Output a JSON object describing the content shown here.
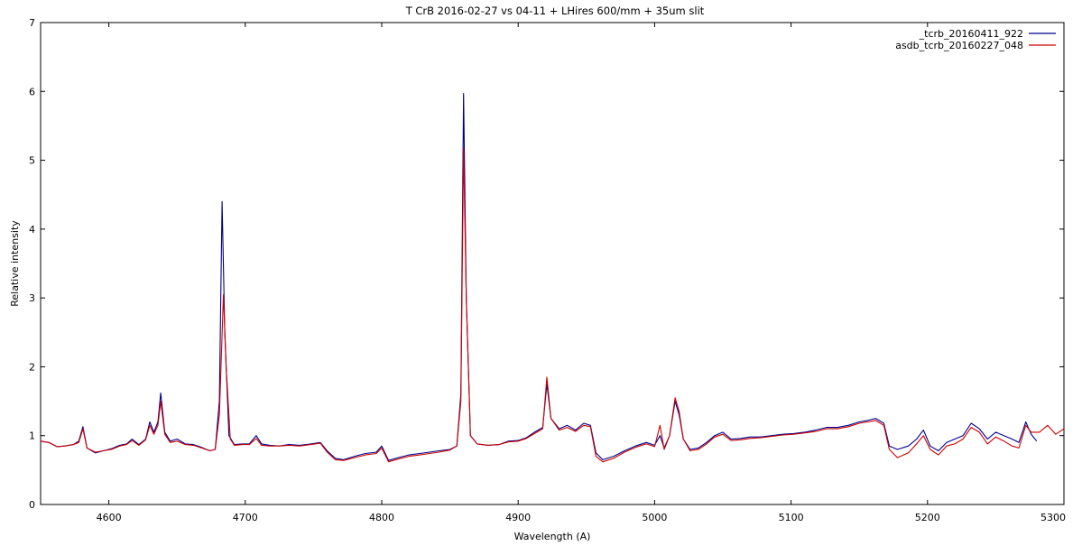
{
  "chart_data": {
    "type": "line",
    "title": "T CrB 2016-02-27 vs 04-11 + LHires 600/mm + 35um slit",
    "xlabel": "Wavelength (A)",
    "ylabel": "Relative intensity",
    "xlim": [
      4550,
      5300
    ],
    "ylim": [
      0,
      7
    ],
    "xticks": [
      "4600",
      "4700",
      "4800",
      "4900",
      "5000",
      "5100",
      "5200",
      "5300"
    ],
    "yticks": [
      "0",
      "1",
      "2",
      "3",
      "4",
      "5",
      "6",
      "7"
    ],
    "grid": false,
    "legend": "top-right",
    "series": [
      {
        "name": "_tcrb_20160411_922",
        "color": "#00008b",
        "points": [
          [
            4550,
            0.92
          ],
          [
            4556,
            0.9
          ],
          [
            4562,
            0.84
          ],
          [
            4568,
            0.85
          ],
          [
            4574,
            0.87
          ],
          [
            4578,
            0.92
          ],
          [
            4581,
            1.13
          ],
          [
            4584,
            0.82
          ],
          [
            4590,
            0.75
          ],
          [
            4596,
            0.78
          ],
          [
            4602,
            0.81
          ],
          [
            4608,
            0.86
          ],
          [
            4613,
            0.88
          ],
          [
            4617,
            0.95
          ],
          [
            4622,
            0.87
          ],
          [
            4627,
            0.95
          ],
          [
            4630,
            1.2
          ],
          [
            4633,
            1.05
          ],
          [
            4636,
            1.2
          ],
          [
            4638,
            1.62
          ],
          [
            4641,
            1.05
          ],
          [
            4645,
            0.92
          ],
          [
            4650,
            0.95
          ],
          [
            4656,
            0.88
          ],
          [
            4662,
            0.87
          ],
          [
            4668,
            0.83
          ],
          [
            4674,
            0.78
          ],
          [
            4678,
            0.8
          ],
          [
            4681,
            1.5
          ],
          [
            4683,
            4.4
          ],
          [
            4685,
            2.5
          ],
          [
            4688,
            1.0
          ],
          [
            4692,
            0.87
          ],
          [
            4698,
            0.88
          ],
          [
            4703,
            0.88
          ],
          [
            4708,
            1.0
          ],
          [
            4712,
            0.88
          ],
          [
            4718,
            0.86
          ],
          [
            4725,
            0.85
          ],
          [
            4732,
            0.87
          ],
          [
            4740,
            0.86
          ],
          [
            4748,
            0.88
          ],
          [
            4755,
            0.9
          ],
          [
            4760,
            0.78
          ],
          [
            4766,
            0.67
          ],
          [
            4772,
            0.65
          ],
          [
            4780,
            0.7
          ],
          [
            4788,
            0.74
          ],
          [
            4796,
            0.76
          ],
          [
            4800,
            0.85
          ],
          [
            4805,
            0.64
          ],
          [
            4812,
            0.68
          ],
          [
            4820,
            0.72
          ],
          [
            4828,
            0.74
          ],
          [
            4835,
            0.76
          ],
          [
            4842,
            0.78
          ],
          [
            4850,
            0.8
          ],
          [
            4855,
            0.85
          ],
          [
            4858,
            1.6
          ],
          [
            4860,
            5.97
          ],
          [
            4862,
            3.0
          ],
          [
            4865,
            1.0
          ],
          [
            4870,
            0.88
          ],
          [
            4878,
            0.86
          ],
          [
            4886,
            0.87
          ],
          [
            4893,
            0.92
          ],
          [
            4900,
            0.93
          ],
          [
            4906,
            0.97
          ],
          [
            4912,
            1.05
          ],
          [
            4918,
            1.12
          ],
          [
            4921,
            1.75
          ],
          [
            4924,
            1.25
          ],
          [
            4930,
            1.1
          ],
          [
            4936,
            1.15
          ],
          [
            4942,
            1.08
          ],
          [
            4948,
            1.18
          ],
          [
            4953,
            1.15
          ],
          [
            4957,
            0.75
          ],
          [
            4962,
            0.65
          ],
          [
            4970,
            0.7
          ],
          [
            4978,
            0.78
          ],
          [
            4986,
            0.85
          ],
          [
            4994,
            0.9
          ],
          [
            5000,
            0.86
          ],
          [
            5004,
            1.0
          ],
          [
            5007,
            0.82
          ],
          [
            5011,
            1.0
          ],
          [
            5015,
            1.5
          ],
          [
            5018,
            1.3
          ],
          [
            5021,
            0.95
          ],
          [
            5026,
            0.8
          ],
          [
            5032,
            0.82
          ],
          [
            5038,
            0.9
          ],
          [
            5044,
            1.0
          ],
          [
            5050,
            1.05
          ],
          [
            5056,
            0.95
          ],
          [
            5063,
            0.96
          ],
          [
            5070,
            0.98
          ],
          [
            5078,
            0.98
          ],
          [
            5086,
            1.0
          ],
          [
            5094,
            1.02
          ],
          [
            5102,
            1.03
          ],
          [
            5110,
            1.05
          ],
          [
            5118,
            1.08
          ],
          [
            5126,
            1.12
          ],
          [
            5134,
            1.12
          ],
          [
            5142,
            1.15
          ],
          [
            5150,
            1.2
          ],
          [
            5156,
            1.22
          ],
          [
            5162,
            1.25
          ],
          [
            5168,
            1.18
          ],
          [
            5172,
            0.85
          ],
          [
            5178,
            0.8
          ],
          [
            5186,
            0.85
          ],
          [
            5192,
            0.95
          ],
          [
            5197,
            1.08
          ],
          [
            5202,
            0.85
          ],
          [
            5208,
            0.78
          ],
          [
            5214,
            0.9
          ],
          [
            5220,
            0.95
          ],
          [
            5226,
            1.0
          ],
          [
            5232,
            1.18
          ],
          [
            5238,
            1.1
          ],
          [
            5244,
            0.95
          ],
          [
            5250,
            1.05
          ],
          [
            5256,
            1.0
          ],
          [
            5262,
            0.95
          ],
          [
            5267,
            0.9
          ],
          [
            5272,
            1.2
          ],
          [
            5276,
            1.02
          ],
          [
            5280,
            0.92
          ]
        ]
      },
      {
        "name": "asdb_tcrb_20160227_048",
        "color": "#cc0000",
        "points": [
          [
            4550,
            0.92
          ],
          [
            4556,
            0.9
          ],
          [
            4562,
            0.84
          ],
          [
            4568,
            0.85
          ],
          [
            4574,
            0.87
          ],
          [
            4578,
            0.9
          ],
          [
            4581,
            1.1
          ],
          [
            4584,
            0.82
          ],
          [
            4590,
            0.76
          ],
          [
            4596,
            0.78
          ],
          [
            4602,
            0.8
          ],
          [
            4608,
            0.85
          ],
          [
            4613,
            0.87
          ],
          [
            4617,
            0.93
          ],
          [
            4622,
            0.86
          ],
          [
            4627,
            0.94
          ],
          [
            4630,
            1.15
          ],
          [
            4633,
            1.02
          ],
          [
            4636,
            1.15
          ],
          [
            4638,
            1.5
          ],
          [
            4641,
            1.02
          ],
          [
            4645,
            0.9
          ],
          [
            4650,
            0.92
          ],
          [
            4656,
            0.87
          ],
          [
            4662,
            0.86
          ],
          [
            4668,
            0.82
          ],
          [
            4674,
            0.78
          ],
          [
            4678,
            0.8
          ],
          [
            4681,
            1.3
          ],
          [
            4684,
            3.05
          ],
          [
            4686,
            2.0
          ],
          [
            4689,
            0.95
          ],
          [
            4692,
            0.86
          ],
          [
            4698,
            0.87
          ],
          [
            4703,
            0.87
          ],
          [
            4708,
            0.96
          ],
          [
            4712,
            0.86
          ],
          [
            4718,
            0.85
          ],
          [
            4725,
            0.85
          ],
          [
            4732,
            0.86
          ],
          [
            4740,
            0.85
          ],
          [
            4748,
            0.87
          ],
          [
            4755,
            0.89
          ],
          [
            4760,
            0.76
          ],
          [
            4766,
            0.65
          ],
          [
            4772,
            0.64
          ],
          [
            4780,
            0.68
          ],
          [
            4788,
            0.72
          ],
          [
            4796,
            0.74
          ],
          [
            4800,
            0.82
          ],
          [
            4805,
            0.62
          ],
          [
            4812,
            0.66
          ],
          [
            4820,
            0.7
          ],
          [
            4828,
            0.72
          ],
          [
            4835,
            0.74
          ],
          [
            4842,
            0.76
          ],
          [
            4850,
            0.79
          ],
          [
            4855,
            0.85
          ],
          [
            4858,
            1.5
          ],
          [
            4860,
            5.18
          ],
          [
            4862,
            3.0
          ],
          [
            4865,
            1.0
          ],
          [
            4870,
            0.88
          ],
          [
            4878,
            0.86
          ],
          [
            4886,
            0.87
          ],
          [
            4893,
            0.91
          ],
          [
            4900,
            0.92
          ],
          [
            4906,
            0.96
          ],
          [
            4912,
            1.03
          ],
          [
            4918,
            1.1
          ],
          [
            4921,
            1.85
          ],
          [
            4924,
            1.25
          ],
          [
            4930,
            1.08
          ],
          [
            4936,
            1.12
          ],
          [
            4942,
            1.06
          ],
          [
            4948,
            1.15
          ],
          [
            4953,
            1.13
          ],
          [
            4957,
            0.7
          ],
          [
            4962,
            0.62
          ],
          [
            4970,
            0.67
          ],
          [
            4978,
            0.76
          ],
          [
            4986,
            0.83
          ],
          [
            4994,
            0.88
          ],
          [
            5000,
            0.84
          ],
          [
            5004,
            1.15
          ],
          [
            5007,
            0.8
          ],
          [
            5011,
            1.0
          ],
          [
            5015,
            1.55
          ],
          [
            5018,
            1.35
          ],
          [
            5021,
            0.95
          ],
          [
            5026,
            0.78
          ],
          [
            5032,
            0.8
          ],
          [
            5038,
            0.88
          ],
          [
            5044,
            0.98
          ],
          [
            5050,
            1.02
          ],
          [
            5056,
            0.93
          ],
          [
            5063,
            0.94
          ],
          [
            5070,
            0.96
          ],
          [
            5078,
            0.97
          ],
          [
            5086,
            0.99
          ],
          [
            5094,
            1.01
          ],
          [
            5102,
            1.02
          ],
          [
            5110,
            1.04
          ],
          [
            5118,
            1.06
          ],
          [
            5126,
            1.1
          ],
          [
            5134,
            1.1
          ],
          [
            5142,
            1.13
          ],
          [
            5150,
            1.18
          ],
          [
            5156,
            1.2
          ],
          [
            5162,
            1.22
          ],
          [
            5168,
            1.15
          ],
          [
            5172,
            0.8
          ],
          [
            5178,
            0.68
          ],
          [
            5186,
            0.75
          ],
          [
            5192,
            0.88
          ],
          [
            5197,
            1.0
          ],
          [
            5202,
            0.8
          ],
          [
            5208,
            0.72
          ],
          [
            5214,
            0.85
          ],
          [
            5220,
            0.88
          ],
          [
            5226,
            0.95
          ],
          [
            5232,
            1.12
          ],
          [
            5238,
            1.05
          ],
          [
            5244,
            0.88
          ],
          [
            5250,
            0.98
          ],
          [
            5256,
            0.92
          ],
          [
            5262,
            0.85
          ],
          [
            5267,
            0.82
          ],
          [
            5272,
            1.15
          ],
          [
            5276,
            1.05
          ],
          [
            5282,
            1.05
          ],
          [
            5288,
            1.15
          ],
          [
            5294,
            1.02
          ],
          [
            5300,
            1.1
          ]
        ]
      }
    ]
  }
}
